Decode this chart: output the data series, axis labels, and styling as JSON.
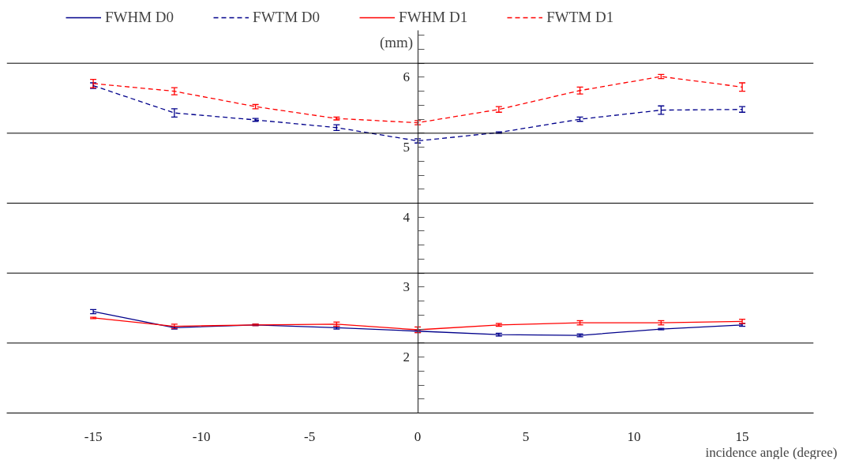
{
  "chart_data": {
    "type": "line",
    "xlabel": "incidence angle (degree)",
    "ylabel": "(mm)",
    "x": [
      -15,
      -11.25,
      -7.5,
      -3.75,
      0,
      3.75,
      7.5,
      11.25,
      15
    ],
    "xlim": [
      -19,
      18.3
    ],
    "ylim": [
      1.2,
      6.67
    ],
    "xticks": [
      -15,
      -10,
      -5,
      0,
      5,
      10,
      15
    ],
    "yticks": [
      {
        "value": 1.4,
        "label": null
      },
      {
        "value": 1.6,
        "label": null
      },
      {
        "value": 1.8,
        "label": null
      },
      2,
      {
        "value": 2.2,
        "label": null
      },
      {
        "value": 2.4,
        "label": null
      },
      {
        "value": 2.6,
        "label": null
      },
      {
        "value": 2.8,
        "label": null
      },
      3,
      {
        "value": 3.2,
        "label": null
      },
      {
        "value": 3.4,
        "label": null
      },
      {
        "value": 3.6,
        "label": null
      },
      {
        "value": 3.8,
        "label": null
      },
      4,
      {
        "value": 4.2,
        "label": null
      },
      {
        "value": 4.4,
        "label": null
      },
      {
        "value": 4.6,
        "label": null
      },
      {
        "value": 4.8,
        "label": null
      },
      5,
      {
        "value": 5.2,
        "label": null
      },
      {
        "value": 5.4,
        "label": null
      },
      {
        "value": 5.6,
        "label": null
      },
      {
        "value": 5.8,
        "label": null
      },
      6,
      {
        "value": 6.2,
        "label": null
      },
      {
        "value": 6.4,
        "label": null
      },
      {
        "value": 6.6,
        "label": null
      }
    ],
    "ref_lines": [
      {
        "axis": "y",
        "value": 6.2,
        "color": "#000000"
      },
      {
        "axis": "y",
        "value": 5.2,
        "color": "#000000"
      },
      {
        "axis": "y",
        "value": 4.2,
        "color": "#000000"
      },
      {
        "axis": "y",
        "value": 3.2,
        "color": "#000000"
      },
      {
        "axis": "y",
        "value": 2.2,
        "color": "#000000"
      }
    ],
    "legend": "top",
    "grid": false,
    "marker": "none",
    "series": [
      {
        "name": "FWHM D0",
        "color": "#00008b",
        "line_style": "solid",
        "values": [
          2.65,
          2.42,
          2.46,
          2.42,
          2.37,
          2.32,
          2.31,
          2.4,
          2.46
        ],
        "errors": [
          0.03,
          0.02,
          0.01,
          0.02,
          0.02,
          0.02,
          0.02,
          0.01,
          0.02
        ]
      },
      {
        "name": "FWTM D0",
        "color": "#00008b",
        "line_style": "dashed",
        "values": [
          5.88,
          5.49,
          5.39,
          5.28,
          5.09,
          5.21,
          5.4,
          5.53,
          5.54
        ],
        "errors": [
          0.04,
          0.06,
          0.02,
          0.04,
          0.03,
          0.01,
          0.03,
          0.06,
          0.04
        ]
      },
      {
        "name": "FWHM D1",
        "color": "#ff0000",
        "line_style": "solid",
        "values": [
          2.56,
          2.44,
          2.46,
          2.47,
          2.39,
          2.46,
          2.49,
          2.49,
          2.51
        ],
        "errors": [
          0.01,
          0.03,
          0.01,
          0.03,
          0.04,
          0.02,
          0.03,
          0.03,
          0.03
        ]
      },
      {
        "name": "FWTM D1",
        "color": "#ff0000",
        "line_style": "dashed",
        "values": [
          5.91,
          5.8,
          5.58,
          5.41,
          5.35,
          5.54,
          5.81,
          6.01,
          5.86
        ],
        "errors": [
          0.06,
          0.05,
          0.03,
          0.02,
          0.03,
          0.04,
          0.05,
          0.03,
          0.06
        ]
      }
    ]
  }
}
